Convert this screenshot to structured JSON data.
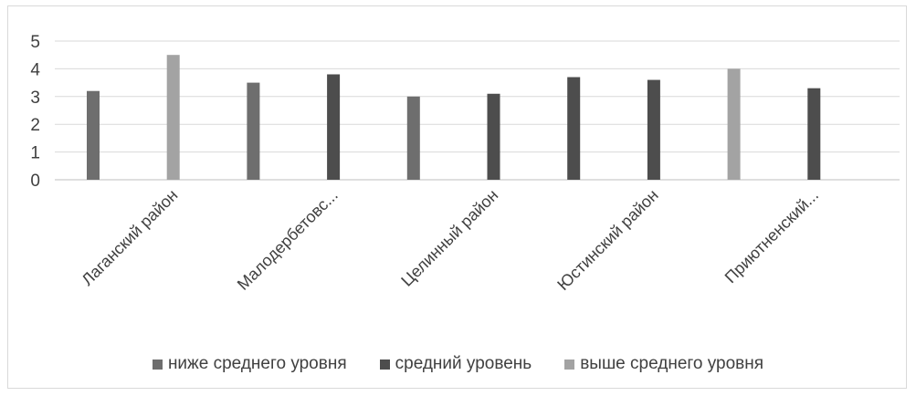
{
  "chart_data": {
    "type": "bar",
    "categories": [
      "",
      "Лаганский район",
      "",
      "Малодербетовс...",
      "",
      "Целинный район",
      "",
      "Юстинский район",
      "",
      "Приютненский..."
    ],
    "values": [
      3.2,
      4.5,
      3.5,
      3.8,
      3.0,
      3.1,
      3.7,
      3.6,
      4.0,
      3.3
    ],
    "levels": [
      0,
      2,
      0,
      1,
      0,
      1,
      1,
      1,
      2,
      1
    ],
    "ylim": [
      0,
      5
    ],
    "yticks": [
      "0",
      "1",
      "2",
      "3",
      "4",
      "5"
    ],
    "grid": true,
    "legend_position": "bottom",
    "legend": [
      {
        "label": "ниже среднего уровня",
        "color": "#6e6e6e"
      },
      {
        "label": "средний уровень",
        "color": "#4d4d4d"
      },
      {
        "label": "выше среднего уровня",
        "color": "#a3a3a3"
      }
    ]
  }
}
